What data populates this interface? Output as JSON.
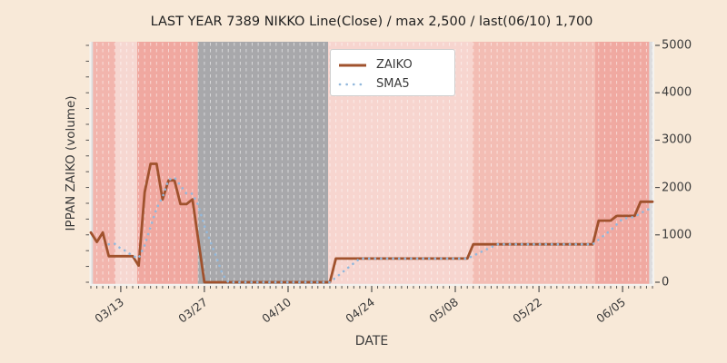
{
  "chart_data": {
    "type": "line",
    "title": "LAST YEAR 7389 NIKKO Line(Close) / max 2,500 / last(06/10) 1,700",
    "xlabel": "DATE",
    "ylabel": "IPPAN ZAIKO (volume)",
    "ylim": [
      0,
      5000
    ],
    "yticks": [
      0,
      1000,
      2000,
      3000,
      4000,
      5000
    ],
    "x_unit": "days since 03/08",
    "x_range": [
      0,
      94
    ],
    "xticks": [
      {
        "day": 5,
        "label": "03/13"
      },
      {
        "day": 19,
        "label": "03/27"
      },
      {
        "day": 33,
        "label": "04/10"
      },
      {
        "day": 47,
        "label": "04/24"
      },
      {
        "day": 61,
        "label": "05/08"
      },
      {
        "day": 75,
        "label": "05/22"
      },
      {
        "day": 89,
        "label": "06/05"
      }
    ],
    "max_value": 2500,
    "last_date": "06/10",
    "last_value": 1700,
    "grid": {
      "vertical_daily_dashed": true,
      "color": "rgba(255,255,255,0.55)"
    },
    "legend_position": "upper center-left, inside plot",
    "series": [
      {
        "name": "ZAIKO",
        "color": "#a0522d",
        "line": "solid",
        "points": [
          [
            0,
            1050
          ],
          [
            1,
            850
          ],
          [
            2,
            1050
          ],
          [
            3,
            550
          ],
          [
            7,
            550
          ],
          [
            8,
            350
          ],
          [
            9,
            1900
          ],
          [
            10,
            2500
          ],
          [
            11,
            2500
          ],
          [
            12,
            1750
          ],
          [
            13,
            2150
          ],
          [
            14,
            2150
          ],
          [
            15,
            1650
          ],
          [
            16,
            1650
          ],
          [
            17,
            1750
          ],
          [
            19,
            0
          ],
          [
            40,
            0
          ],
          [
            41,
            500
          ],
          [
            63,
            500
          ],
          [
            64,
            800
          ],
          [
            84,
            800
          ],
          [
            85,
            1300
          ],
          [
            87,
            1300
          ],
          [
            88,
            1400
          ],
          [
            91,
            1400
          ],
          [
            92,
            1700
          ],
          [
            94,
            1700
          ]
        ]
      },
      {
        "name": "SMA5",
        "color": "#92b8dc",
        "line": "dotted",
        "points": [
          [
            3,
            800
          ],
          [
            4,
            810
          ],
          [
            5,
            710
          ],
          [
            6,
            650
          ],
          [
            7,
            550
          ],
          [
            8,
            510
          ],
          [
            9,
            780
          ],
          [
            10,
            1170
          ],
          [
            11,
            1560
          ],
          [
            12,
            1800
          ],
          [
            13,
            2160
          ],
          [
            14,
            2210
          ],
          [
            15,
            2040
          ],
          [
            16,
            1870
          ],
          [
            17,
            1870
          ],
          [
            18,
            1620
          ],
          [
            19,
            1190
          ],
          [
            20,
            860
          ],
          [
            21,
            530
          ],
          [
            22,
            180
          ],
          [
            23,
            0
          ],
          [
            40,
            0
          ],
          [
            41,
            100
          ],
          [
            42,
            200
          ],
          [
            43,
            300
          ],
          [
            44,
            400
          ],
          [
            45,
            500
          ],
          [
            63,
            500
          ],
          [
            64,
            560
          ],
          [
            65,
            620
          ],
          [
            66,
            680
          ],
          [
            67,
            740
          ],
          [
            68,
            800
          ],
          [
            84,
            800
          ],
          [
            85,
            900
          ],
          [
            86,
            1000
          ],
          [
            87,
            1100
          ],
          [
            88,
            1220
          ],
          [
            89,
            1340
          ],
          [
            90,
            1360
          ],
          [
            91,
            1380
          ],
          [
            92,
            1460
          ],
          [
            93,
            1520
          ],
          [
            94,
            1580
          ]
        ]
      }
    ],
    "background_bands": [
      {
        "from": 0,
        "to": 0.35,
        "color": "#dcdcde"
      },
      {
        "from": 0.35,
        "to": 4.1,
        "color": "#f2b5ad"
      },
      {
        "from": 4.1,
        "to": 7.75,
        "color": "#f6d7d1"
      },
      {
        "from": 7.75,
        "to": 17.9,
        "color": "#f0a8a0"
      },
      {
        "from": 17.9,
        "to": 39.7,
        "color": "#a8a8ab"
      },
      {
        "from": 39.7,
        "to": 63.9,
        "color": "#f7d5cf"
      },
      {
        "from": 63.9,
        "to": 84.4,
        "color": "#f3bdb4"
      },
      {
        "from": 84.4,
        "to": 93.45,
        "color": "#f0a9a1"
      },
      {
        "from": 93.45,
        "to": 94,
        "color": "#dcdcde"
      }
    ]
  }
}
